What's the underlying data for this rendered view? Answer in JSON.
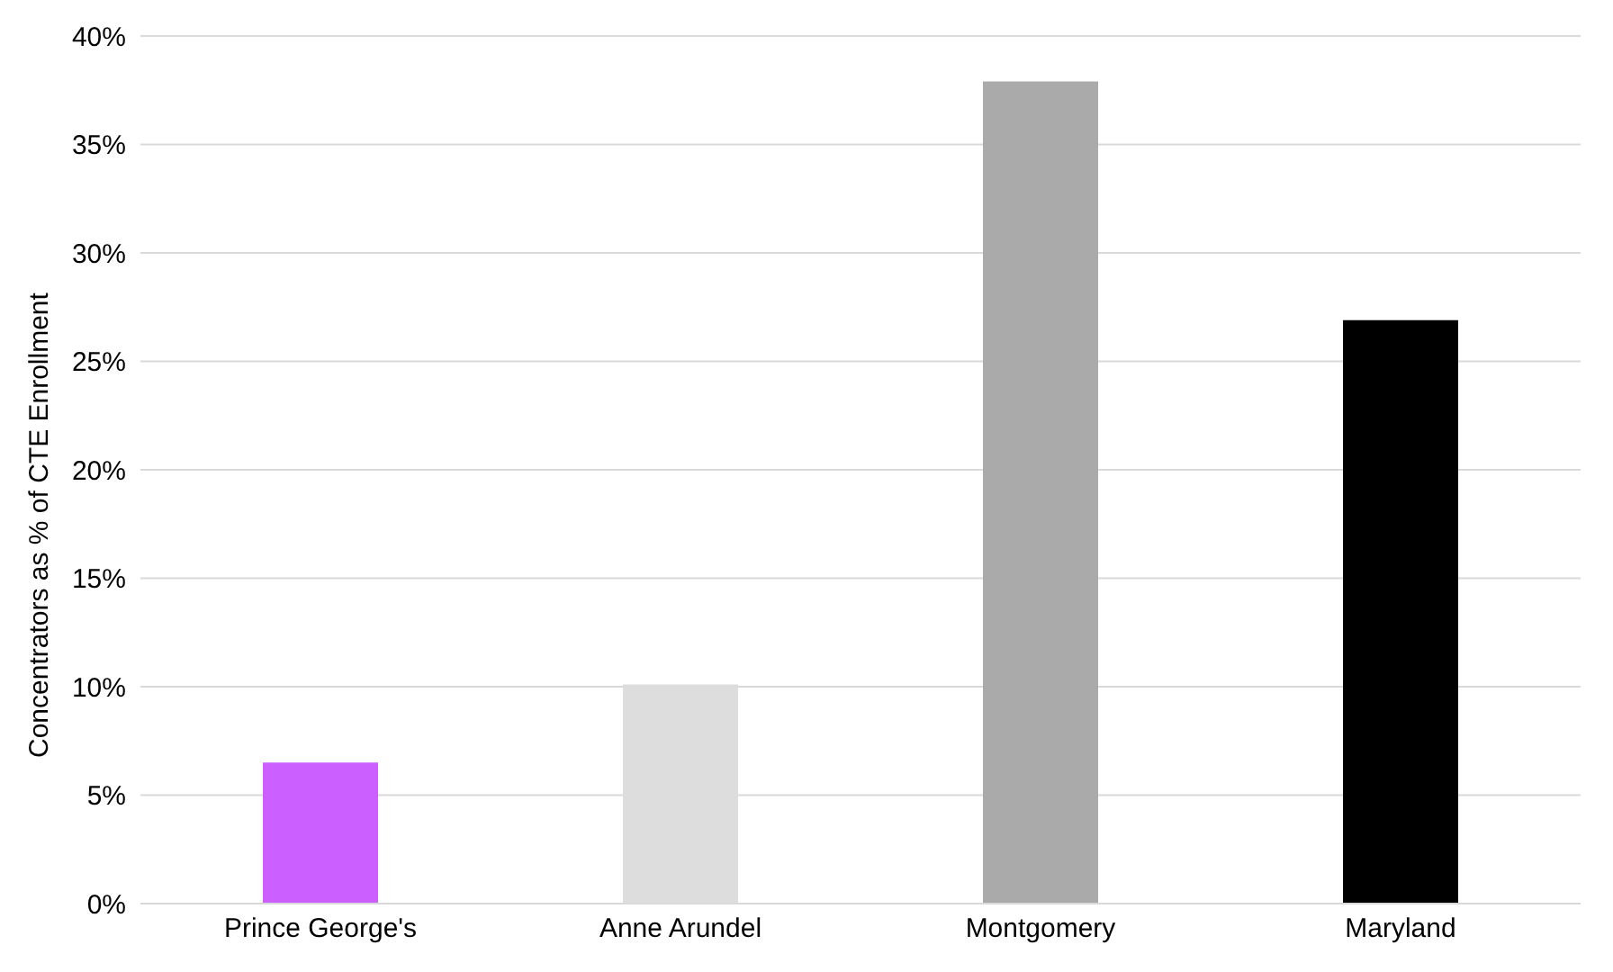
{
  "chart_data": {
    "type": "bar",
    "ylabel": "Concentrators as % of CTE Enrollment",
    "categories": [
      "Prince George's",
      "Anne Arundel",
      "Montgomery",
      "Maryland"
    ],
    "values": [
      6.5,
      10.1,
      37.9,
      26.9
    ],
    "colors": [
      "#cc5fff",
      "#dddddd",
      "#aaaaaa",
      "#000000"
    ],
    "ylim": [
      0,
      40
    ],
    "yticks": [
      {
        "value": 0,
        "label": "0%"
      },
      {
        "value": 5,
        "label": "5%"
      },
      {
        "value": 10,
        "label": "10%"
      },
      {
        "value": 15,
        "label": "15%"
      },
      {
        "value": 20,
        "label": "20%"
      },
      {
        "value": 25,
        "label": "25%"
      },
      {
        "value": 30,
        "label": "30%"
      },
      {
        "value": 35,
        "label": "35%"
      },
      {
        "value": 40,
        "label": "40%"
      }
    ],
    "grid": "y",
    "legend": false
  }
}
